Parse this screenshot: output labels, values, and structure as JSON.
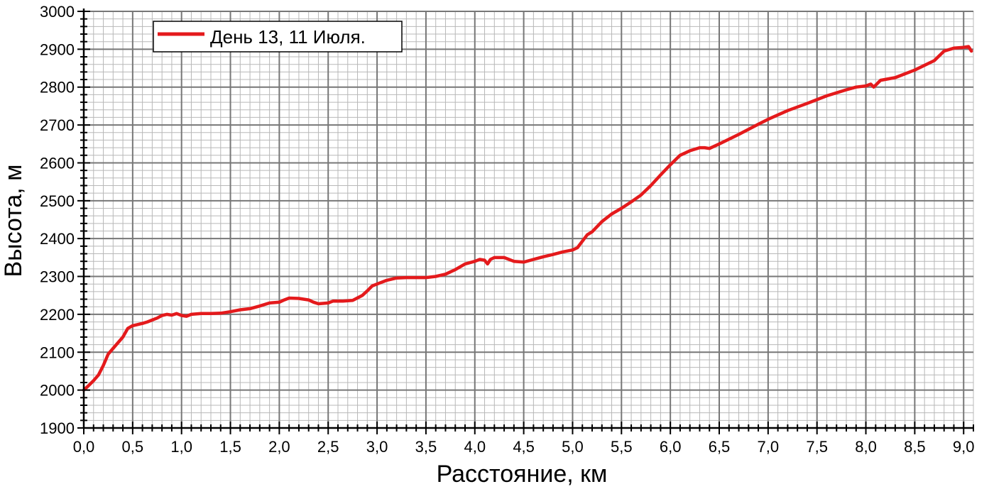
{
  "chart_data": {
    "type": "line",
    "title": "",
    "xlabel": "Расстояние, км",
    "ylabel": "Высота, м",
    "xlim": [
      0,
      9.1
    ],
    "ylim": [
      1900,
      3000
    ],
    "x_ticks": [
      0,
      0.5,
      1,
      1.5,
      2,
      2.5,
      3,
      3.5,
      4,
      4.5,
      5,
      5.5,
      6,
      6.5,
      7,
      7.5,
      8,
      8.5,
      9
    ],
    "x_tick_labels": [
      "0,0",
      "0,5",
      "1,0",
      "1,5",
      "2,0",
      "2,5",
      "3,0",
      "3,5",
      "4,0",
      "4,5",
      "5,0",
      "5,5",
      "6,0",
      "6,5",
      "7,0",
      "7,5",
      "8,0",
      "8,5",
      "9,0"
    ],
    "y_ticks": [
      1900,
      2000,
      2100,
      2200,
      2300,
      2400,
      2500,
      2600,
      2700,
      2800,
      2900,
      3000
    ],
    "y_tick_labels": [
      "1900",
      "2000",
      "2100",
      "2200",
      "2300",
      "2400",
      "2500",
      "2600",
      "2700",
      "2800",
      "2900",
      "3000"
    ],
    "grid": true,
    "legend_position": "top-left",
    "series": [
      {
        "name": "День 13, 11 Июля.",
        "color": "#e41a1c",
        "points": [
          [
            0.0,
            2000
          ],
          [
            0.05,
            2012
          ],
          [
            0.1,
            2025
          ],
          [
            0.15,
            2040
          ],
          [
            0.2,
            2065
          ],
          [
            0.25,
            2095
          ],
          [
            0.3,
            2110
          ],
          [
            0.35,
            2125
          ],
          [
            0.4,
            2140
          ],
          [
            0.45,
            2163
          ],
          [
            0.5,
            2170
          ],
          [
            0.55,
            2173
          ],
          [
            0.6,
            2176
          ],
          [
            0.65,
            2180
          ],
          [
            0.7,
            2185
          ],
          [
            0.75,
            2190
          ],
          [
            0.8,
            2197
          ],
          [
            0.85,
            2200
          ],
          [
            0.9,
            2198
          ],
          [
            0.95,
            2202
          ],
          [
            1.0,
            2197
          ],
          [
            1.05,
            2195
          ],
          [
            1.1,
            2200
          ],
          [
            1.2,
            2202
          ],
          [
            1.3,
            2202
          ],
          [
            1.4,
            2203
          ],
          [
            1.5,
            2207
          ],
          [
            1.6,
            2212
          ],
          [
            1.7,
            2215
          ],
          [
            1.8,
            2222
          ],
          [
            1.9,
            2230
          ],
          [
            2.0,
            2232
          ],
          [
            2.05,
            2238
          ],
          [
            2.1,
            2243
          ],
          [
            2.2,
            2242
          ],
          [
            2.3,
            2238
          ],
          [
            2.35,
            2232
          ],
          [
            2.4,
            2228
          ],
          [
            2.5,
            2230
          ],
          [
            2.55,
            2235
          ],
          [
            2.65,
            2235
          ],
          [
            2.75,
            2237
          ],
          [
            2.85,
            2250
          ],
          [
            2.9,
            2262
          ],
          [
            2.95,
            2275
          ],
          [
            3.0,
            2280
          ],
          [
            3.1,
            2290
          ],
          [
            3.2,
            2296
          ],
          [
            3.3,
            2297
          ],
          [
            3.4,
            2297
          ],
          [
            3.5,
            2297
          ],
          [
            3.6,
            2300
          ],
          [
            3.7,
            2306
          ],
          [
            3.8,
            2318
          ],
          [
            3.9,
            2333
          ],
          [
            4.0,
            2340
          ],
          [
            4.05,
            2345
          ],
          [
            4.1,
            2343
          ],
          [
            4.13,
            2333
          ],
          [
            4.16,
            2345
          ],
          [
            4.2,
            2350
          ],
          [
            4.3,
            2350
          ],
          [
            4.4,
            2340
          ],
          [
            4.5,
            2338
          ],
          [
            4.6,
            2345
          ],
          [
            4.7,
            2352
          ],
          [
            4.8,
            2358
          ],
          [
            4.9,
            2365
          ],
          [
            5.0,
            2370
          ],
          [
            5.05,
            2376
          ],
          [
            5.1,
            2393
          ],
          [
            5.15,
            2410
          ],
          [
            5.2,
            2418
          ],
          [
            5.3,
            2445
          ],
          [
            5.4,
            2465
          ],
          [
            5.5,
            2480
          ],
          [
            5.6,
            2497
          ],
          [
            5.7,
            2515
          ],
          [
            5.8,
            2540
          ],
          [
            5.9,
            2568
          ],
          [
            6.0,
            2595
          ],
          [
            6.1,
            2620
          ],
          [
            6.2,
            2632
          ],
          [
            6.3,
            2640
          ],
          [
            6.35,
            2640
          ],
          [
            6.4,
            2638
          ],
          [
            6.5,
            2650
          ],
          [
            6.7,
            2675
          ],
          [
            6.9,
            2702
          ],
          [
            7.0,
            2715
          ],
          [
            7.2,
            2738
          ],
          [
            7.4,
            2757
          ],
          [
            7.6,
            2777
          ],
          [
            7.8,
            2793
          ],
          [
            7.9,
            2800
          ],
          [
            8.0,
            2803
          ],
          [
            8.05,
            2808
          ],
          [
            8.08,
            2800
          ],
          [
            8.15,
            2818
          ],
          [
            8.3,
            2825
          ],
          [
            8.5,
            2845
          ],
          [
            8.7,
            2870
          ],
          [
            8.8,
            2895
          ],
          [
            8.9,
            2903
          ],
          [
            9.0,
            2905
          ],
          [
            9.05,
            2907
          ],
          [
            9.08,
            2895
          ]
        ]
      }
    ]
  }
}
